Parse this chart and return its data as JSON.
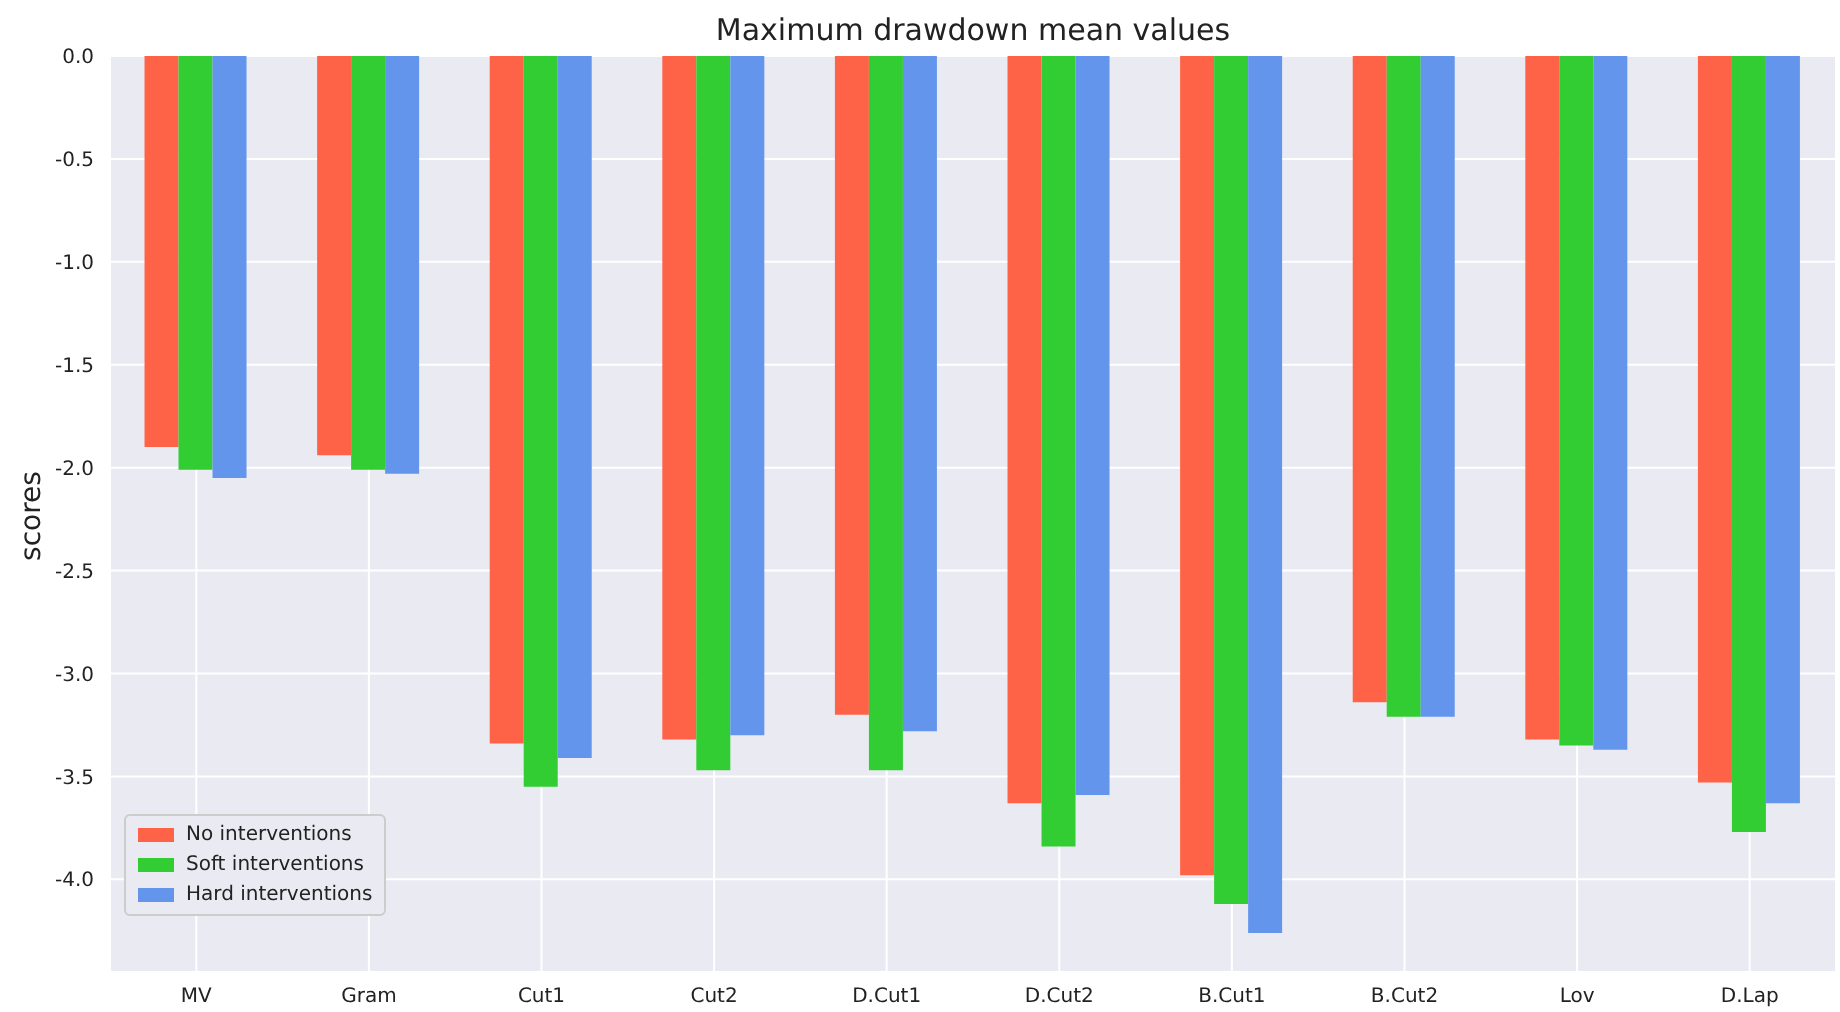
{
  "chart_data": {
    "type": "bar",
    "title": "Maximum drawdown mean values",
    "ylabel": "scores",
    "categories": [
      "MV",
      "Gram",
      "Cut1",
      "Cut2",
      "D.Cut1",
      "D.Cut2",
      "B.Cut1",
      "B.Cut2",
      "Lov",
      "D.Lap"
    ],
    "series": [
      {
        "name": "No interventions",
        "color": "#ff6347",
        "values": [
          -1.9,
          -1.94,
          -3.34,
          -3.32,
          -3.2,
          -3.63,
          -3.98,
          -3.14,
          -3.32,
          -3.53
        ]
      },
      {
        "name": "Soft interventions",
        "color": "#32cd32",
        "values": [
          -2.01,
          -2.01,
          -3.55,
          -3.47,
          -3.47,
          -3.84,
          -4.12,
          -3.21,
          -3.35,
          -3.77
        ]
      },
      {
        "name": "Hard interventions",
        "color": "#6495ed",
        "values": [
          -2.05,
          -2.03,
          -3.41,
          -3.3,
          -3.28,
          -3.59,
          -4.26,
          -3.21,
          -3.37,
          -3.63
        ]
      }
    ],
    "ylim": [
      -4.45,
      0
    ],
    "yticks": [
      {
        "value": 0,
        "label": "0.0"
      },
      -0.5,
      {
        "value": -1,
        "label": "-1.0"
      },
      -1.5,
      {
        "value": -2,
        "label": "-2.0"
      },
      -2.5,
      {
        "value": -3,
        "label": "-3.0"
      },
      -3.5,
      {
        "value": -4,
        "label": "-4.0"
      }
    ],
    "grid": true,
    "legend": "bottom left"
  }
}
